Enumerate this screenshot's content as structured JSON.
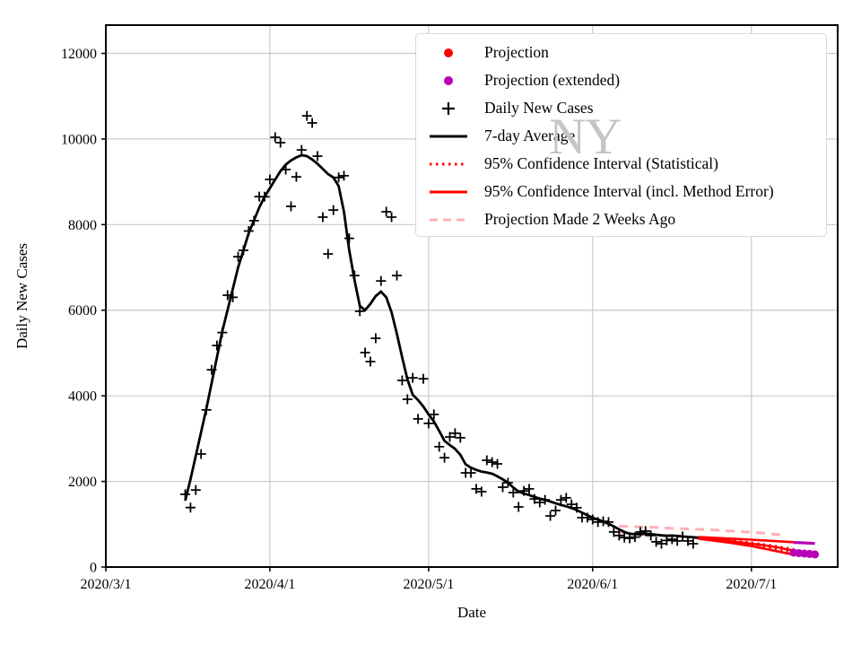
{
  "figure": {
    "watermark": "NY",
    "background": "#ffffff"
  },
  "chart_data": {
    "type": "line",
    "title": "",
    "xlabel": "Date",
    "ylabel": "Daily New Cases",
    "x_tick_labels": [
      "2020/3/1",
      "2020/4/1",
      "2020/5/1",
      "2020/6/1",
      "2020/7/1"
    ],
    "y_ticks": [
      0,
      2000,
      4000,
      6000,
      8000,
      10000,
      12000
    ],
    "ylim": [
      0,
      12660
    ],
    "xlim_days_after_mar1": [
      0,
      138.3
    ],
    "grid": true,
    "grid_color": "#c9c9c9",
    "spine_color": "#000000",
    "legend_position": "upper center-right",
    "legend": [
      {
        "label": "Projection",
        "marker": "dot",
        "color": "#ff0000"
      },
      {
        "label": "Projection (extended)",
        "marker": "dot",
        "color": "#b800b8"
      },
      {
        "label": "Daily New Cases",
        "marker": "plus",
        "color": "#000000"
      },
      {
        "label": "7-day Average",
        "marker": "line",
        "color": "#000000"
      },
      {
        "label": "95% Confidence Interval (Statistical)",
        "marker": "dotted",
        "color": "#ff0000"
      },
      {
        "label": "95% Confidence Interval (incl. Method Error)",
        "marker": "line",
        "color": "#ff0000"
      },
      {
        "label": "Projection Made 2 Weeks Ago",
        "marker": "dashed",
        "color": "#ffb0b8"
      }
    ],
    "series": [
      {
        "name": "Projection Made 2 Weeks Ago (upper)",
        "type": "line",
        "color": "#ffb0b8",
        "width": 3,
        "dash": "10 7",
        "points": [
          [
            "6/6",
            955
          ],
          [
            "6/12",
            930
          ],
          [
            "6/18",
            895
          ],
          [
            "6/24",
            865
          ],
          [
            "6/30",
            820
          ],
          [
            "7/4",
            785
          ],
          [
            "7/7",
            745
          ]
        ]
      },
      {
        "name": "Projection Made 2 Weeks Ago (lower)",
        "type": "line",
        "color": "#ffb0b8",
        "width": 3,
        "dash": "10 7",
        "points": [
          [
            "6/6",
            800
          ],
          [
            "6/10",
            770
          ],
          [
            "6/14",
            745
          ],
          [
            "6/18",
            715
          ],
          [
            "6/22",
            660
          ],
          [
            "6/26",
            590
          ],
          [
            "6/30",
            510
          ],
          [
            "7/4",
            420
          ],
          [
            "7/9",
            290
          ]
        ]
      },
      {
        "name": "7-day Average",
        "type": "line",
        "color": "#000000",
        "width": 2.8,
        "points": [
          [
            "3/16",
            1550
          ],
          [
            "3/17",
            2050
          ],
          [
            "3/18",
            2600
          ],
          [
            "3/19",
            3150
          ],
          [
            "3/20",
            3700
          ],
          [
            "3/21",
            4300
          ],
          [
            "3/22",
            4900
          ],
          [
            "3/23",
            5500
          ],
          [
            "3/24",
            6000
          ],
          [
            "3/25",
            6500
          ],
          [
            "3/26",
            7000
          ],
          [
            "3/27",
            7400
          ],
          [
            "3/28",
            7800
          ],
          [
            "3/29",
            8100
          ],
          [
            "3/30",
            8400
          ],
          [
            "3/31",
            8650
          ],
          [
            "4/1",
            8850
          ],
          [
            "4/2",
            9050
          ],
          [
            "4/3",
            9250
          ],
          [
            "4/4",
            9400
          ],
          [
            "4/5",
            9500
          ],
          [
            "4/6",
            9570
          ],
          [
            "4/7",
            9620
          ],
          [
            "4/8",
            9600
          ],
          [
            "4/9",
            9520
          ],
          [
            "4/10",
            9420
          ],
          [
            "4/11",
            9300
          ],
          [
            "4/12",
            9180
          ],
          [
            "4/13",
            9100
          ],
          [
            "4/14",
            8900
          ],
          [
            "4/15",
            8300
          ],
          [
            "4/16",
            7400
          ],
          [
            "4/17",
            6700
          ],
          [
            "4/18",
            6100
          ],
          [
            "4/19",
            6000
          ],
          [
            "4/20",
            6150
          ],
          [
            "4/21",
            6330
          ],
          [
            "4/22",
            6435
          ],
          [
            "4/23",
            6300
          ],
          [
            "4/24",
            5950
          ],
          [
            "4/25",
            5450
          ],
          [
            "4/26",
            4900
          ],
          [
            "4/27",
            4380
          ],
          [
            "4/28",
            4025
          ],
          [
            "4/29",
            3900
          ],
          [
            "4/30",
            3750
          ],
          [
            "5/1",
            3565
          ],
          [
            "5/2",
            3400
          ],
          [
            "5/3",
            3180
          ],
          [
            "5/4",
            2950
          ],
          [
            "5/5",
            2850
          ],
          [
            "5/6",
            2760
          ],
          [
            "5/7",
            2620
          ],
          [
            "5/8",
            2400
          ],
          [
            "5/9",
            2320
          ],
          [
            "5/10",
            2270
          ],
          [
            "5/11",
            2230
          ],
          [
            "5/12",
            2210
          ],
          [
            "5/13",
            2180
          ],
          [
            "5/14",
            2120
          ],
          [
            "5/15",
            2050
          ],
          [
            "5/16",
            1970
          ],
          [
            "5/17",
            1860
          ],
          [
            "5/18",
            1760
          ],
          [
            "5/19",
            1720
          ],
          [
            "5/20",
            1680
          ],
          [
            "5/21",
            1640
          ],
          [
            "5/22",
            1600
          ],
          [
            "5/23",
            1570
          ],
          [
            "5/24",
            1530
          ],
          [
            "5/25",
            1490
          ],
          [
            "5/26",
            1450
          ],
          [
            "5/27",
            1420
          ],
          [
            "5/28",
            1380
          ],
          [
            "5/29",
            1330
          ],
          [
            "5/30",
            1270
          ],
          [
            "5/31",
            1210
          ],
          [
            "6/1",
            1150
          ],
          [
            "6/2",
            1110
          ],
          [
            "6/3",
            1060
          ],
          [
            "6/4",
            1010
          ],
          [
            "6/5",
            950
          ],
          [
            "6/6",
            880
          ],
          [
            "6/7",
            820
          ],
          [
            "6/8",
            780
          ],
          [
            "6/9",
            765
          ],
          [
            "6/10",
            770
          ],
          [
            "6/11",
            780
          ],
          [
            "6/12",
            770
          ],
          [
            "6/13",
            755
          ],
          [
            "6/14",
            740
          ],
          [
            "6/15",
            730
          ],
          [
            "6/16",
            735
          ],
          [
            "6/17",
            725
          ],
          [
            "6/18",
            715
          ],
          [
            "6/19",
            705
          ],
          [
            "6/20",
            695
          ],
          [
            "6/21",
            685
          ]
        ]
      },
      {
        "name": "Daily New Cases",
        "type": "scatter",
        "marker": "plus",
        "color": "#000000",
        "points": [
          [
            "3/16",
            1700
          ],
          [
            "3/17",
            1390
          ],
          [
            "3/18",
            1800
          ],
          [
            "3/19",
            2640
          ],
          [
            "3/20",
            3670
          ],
          [
            "3/21",
            4610
          ],
          [
            "3/22",
            5175
          ],
          [
            "3/23",
            5480
          ],
          [
            "3/24",
            6350
          ],
          [
            "3/25",
            6300
          ],
          [
            "3/26",
            7250
          ],
          [
            "3/27",
            7400
          ],
          [
            "3/28",
            7850
          ],
          [
            "3/29",
            8090
          ],
          [
            "3/30",
            8655
          ],
          [
            "3/31",
            8650
          ],
          [
            "4/1",
            9055
          ],
          [
            "4/2",
            10040
          ],
          [
            "4/3",
            9915
          ],
          [
            "4/4",
            9285
          ],
          [
            "4/5",
            8425
          ],
          [
            "4/6",
            9115
          ],
          [
            "4/7",
            9745
          ],
          [
            "4/8",
            10540
          ],
          [
            "4/9",
            10375
          ],
          [
            "4/10",
            9600
          ],
          [
            "4/11",
            8175
          ],
          [
            "4/12",
            7315
          ],
          [
            "4/13",
            8340
          ],
          [
            "4/14",
            9100
          ],
          [
            "4/15",
            9140
          ],
          [
            "4/16",
            7680
          ],
          [
            "4/17",
            6810
          ],
          [
            "4/18",
            5975
          ],
          [
            "4/19",
            5010
          ],
          [
            "4/20",
            4800
          ],
          [
            "4/21",
            5345
          ],
          [
            "4/22",
            6685
          ],
          [
            "4/23",
            8300
          ],
          [
            "4/24",
            8175
          ],
          [
            "4/25",
            6810
          ],
          [
            "4/26",
            4360
          ],
          [
            "4/27",
            3920
          ],
          [
            "4/28",
            4420
          ],
          [
            "4/29",
            3460
          ],
          [
            "4/30",
            4400
          ],
          [
            "5/1",
            3355
          ],
          [
            "5/2",
            3565
          ],
          [
            "5/3",
            2810
          ],
          [
            "5/4",
            2555
          ],
          [
            "5/5",
            3040
          ],
          [
            "5/6",
            3125
          ],
          [
            "5/7",
            3020
          ],
          [
            "5/8",
            2200
          ],
          [
            "5/9",
            2200
          ],
          [
            "5/10",
            1825
          ],
          [
            "5/11",
            1760
          ],
          [
            "5/12",
            2495
          ],
          [
            "5/13",
            2450
          ],
          [
            "5/14",
            2410
          ],
          [
            "5/15",
            1865
          ],
          [
            "5/16",
            1970
          ],
          [
            "5/17",
            1740
          ],
          [
            "5/18",
            1405
          ],
          [
            "5/19",
            1780
          ],
          [
            "5/20",
            1825
          ],
          [
            "5/21",
            1590
          ],
          [
            "5/22",
            1510
          ],
          [
            "5/23",
            1570
          ],
          [
            "5/24",
            1195
          ],
          [
            "5/25",
            1320
          ],
          [
            "5/26",
            1570
          ],
          [
            "5/27",
            1615
          ],
          [
            "5/28",
            1465
          ],
          [
            "5/29",
            1385
          ],
          [
            "5/30",
            1155
          ],
          [
            "5/31",
            1155
          ],
          [
            "6/1",
            1110
          ],
          [
            "6/2",
            1050
          ],
          [
            "6/3",
            1070
          ],
          [
            "6/4",
            1050
          ],
          [
            "6/5",
            820
          ],
          [
            "6/6",
            735
          ],
          [
            "6/7",
            690
          ],
          [
            "6/8",
            670
          ],
          [
            "6/9",
            700
          ],
          [
            "6/10",
            820
          ],
          [
            "6/11",
            840
          ],
          [
            "6/12",
            735
          ],
          [
            "6/13",
            590
          ],
          [
            "6/14",
            545
          ],
          [
            "6/15",
            620
          ],
          [
            "6/16",
            650
          ],
          [
            "6/17",
            610
          ],
          [
            "6/18",
            715
          ],
          [
            "6/19",
            610
          ],
          [
            "6/20",
            545
          ]
        ]
      },
      {
        "name": "95% Confidence Interval (incl. Method Error) upper",
        "type": "line",
        "color": "#ff0000",
        "width": 2.6,
        "points": [
          [
            "6/21",
            700
          ],
          [
            "6/27",
            665
          ],
          [
            "7/1",
            640
          ],
          [
            "7/5",
            610
          ],
          [
            "7/9",
            580
          ]
        ]
      },
      {
        "name": "95% Confidence Interval (incl. Method Error) lower",
        "type": "line",
        "color": "#ff0000",
        "width": 2.6,
        "points": [
          [
            "6/21",
            660
          ],
          [
            "6/27",
            565
          ],
          [
            "7/1",
            490
          ],
          [
            "7/5",
            390
          ],
          [
            "7/9",
            290
          ]
        ]
      },
      {
        "name": "95% Confidence Interval (Statistical) upper",
        "type": "line",
        "color": "#ff0000",
        "width": 2.6,
        "dash": "2.2 4.4",
        "points": [
          [
            "6/21",
            690
          ],
          [
            "6/27",
            625
          ],
          [
            "7/1",
            570
          ],
          [
            "7/5",
            500
          ],
          [
            "7/9",
            420
          ]
        ]
      },
      {
        "name": "95% Confidence Interval (Statistical) lower",
        "type": "line",
        "color": "#ff0000",
        "width": 2.6,
        "dash": "2.2 4.4",
        "points": [
          [
            "6/21",
            670
          ],
          [
            "6/27",
            585
          ],
          [
            "7/1",
            520
          ],
          [
            "7/5",
            440
          ],
          [
            "7/9",
            340
          ]
        ]
      },
      {
        "name": "Projection",
        "type": "line",
        "color": "#ff0000",
        "width": 2.6,
        "points": [
          [
            "6/21",
            680
          ],
          [
            "6/24",
            645
          ],
          [
            "6/27",
            605
          ],
          [
            "6/30",
            560
          ],
          [
            "7/3",
            515
          ],
          [
            "7/6",
            460
          ],
          [
            "7/9",
            380
          ]
        ]
      },
      {
        "name": "Projection (extended) upper",
        "type": "line",
        "color": "#b800b8",
        "width": 3.2,
        "points": [
          [
            "7/9",
            575
          ],
          [
            "7/13",
            552
          ]
        ]
      },
      {
        "name": "Projection (extended)",
        "type": "scatter",
        "marker": "dot",
        "color": "#b800b8",
        "points": [
          [
            "7/9",
            335
          ],
          [
            "7/10",
            325
          ],
          [
            "7/11",
            315
          ],
          [
            "7/12",
            305
          ],
          [
            "7/13",
            295
          ]
        ]
      }
    ]
  }
}
